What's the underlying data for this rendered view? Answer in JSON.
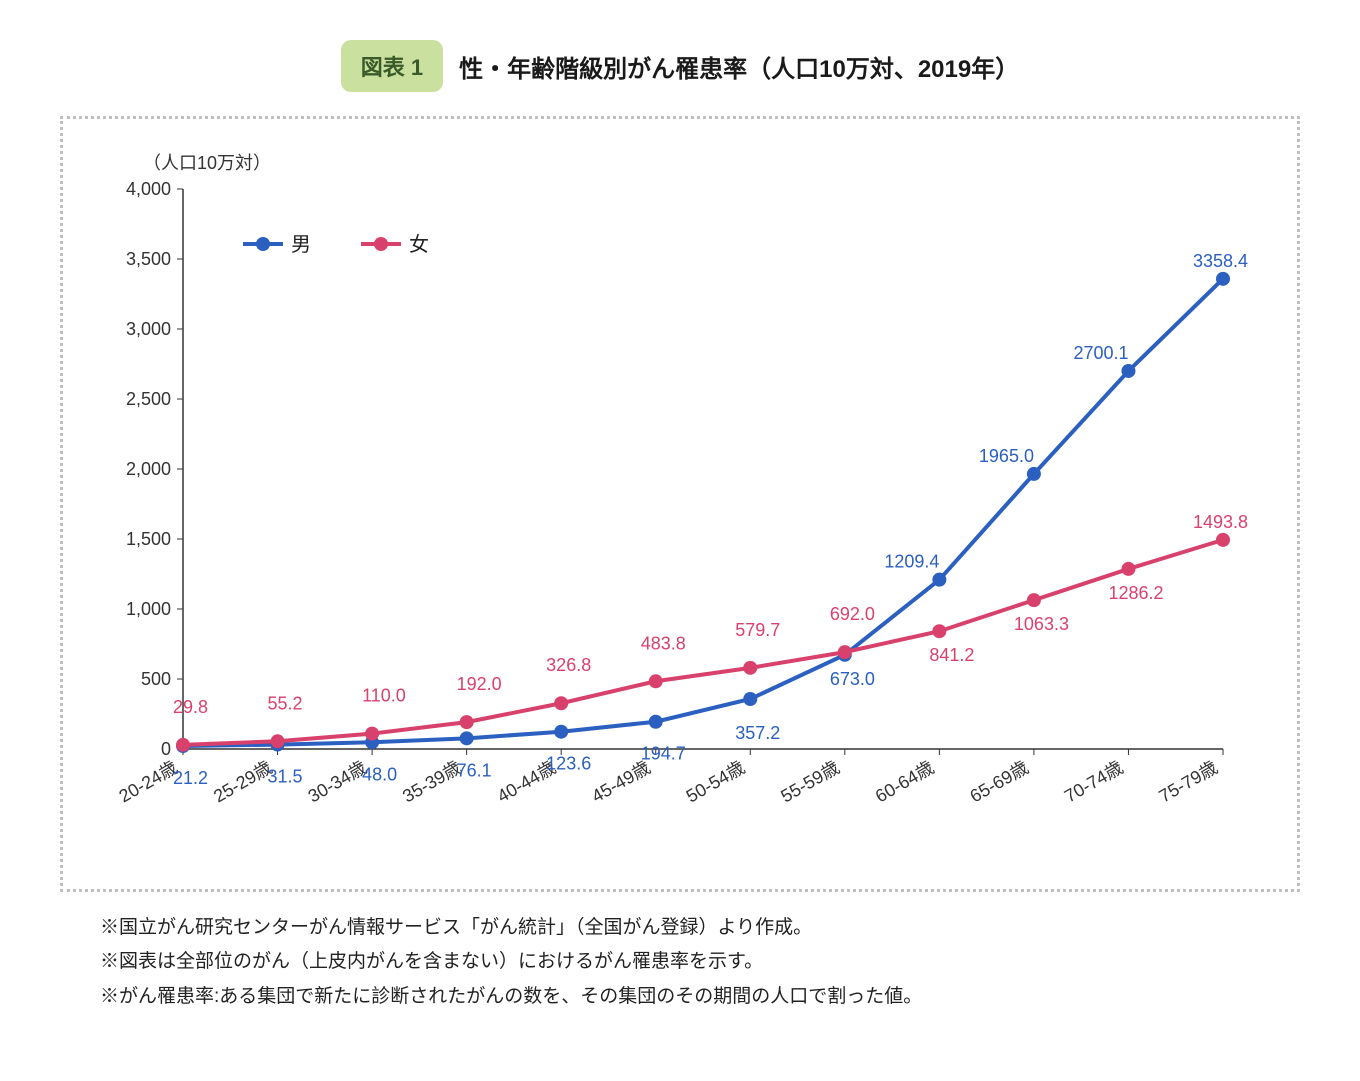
{
  "header": {
    "badge": "図表 1",
    "title": "性・年齢階級別がん罹患率（人口10万対、2019年）"
  },
  "chart": {
    "type": "line",
    "y_axis_label": "（人口10万対）",
    "categories": [
      "20-24歳",
      "25-29歳",
      "30-34歳",
      "35-39歳",
      "40-44歳",
      "45-49歳",
      "50-54歳",
      "55-59歳",
      "60-64歳",
      "65-69歳",
      "70-74歳",
      "75-79歳"
    ],
    "ylim": [
      0,
      4000
    ],
    "ytick_step": 500,
    "yticks": [
      "0",
      "500",
      "1,000",
      "1,500",
      "2,000",
      "2,500",
      "3,000",
      "3,500",
      "4,000"
    ],
    "series": [
      {
        "name": "男",
        "color": "#2b5fc0",
        "values": [
          21.2,
          31.5,
          48.0,
          76.1,
          123.6,
          194.7,
          357.2,
          673.0,
          1209.4,
          1965.0,
          2700.1,
          3358.4
        ],
        "label_offset": [
          [
            -10,
            38
          ],
          [
            -10,
            38
          ],
          [
            -10,
            38
          ],
          [
            -10,
            38
          ],
          [
            -15,
            38
          ],
          [
            -15,
            38
          ],
          [
            -15,
            40
          ],
          [
            -15,
            30
          ],
          [
            -55,
            -12
          ],
          [
            -55,
            -12
          ],
          [
            -55,
            -12
          ],
          [
            -30,
            -12
          ]
        ]
      },
      {
        "name": "女",
        "color": "#d9416d",
        "values": [
          29.8,
          55.2,
          110.0,
          192.0,
          326.8,
          483.8,
          579.7,
          692.0,
          841.2,
          1063.3,
          1286.2,
          1493.8
        ],
        "label_offset": [
          [
            -10,
            -32
          ],
          [
            -10,
            -32
          ],
          [
            -10,
            -32
          ],
          [
            -10,
            -32
          ],
          [
            -15,
            -32
          ],
          [
            -15,
            -32
          ],
          [
            -15,
            -32
          ],
          [
            -15,
            -32
          ],
          [
            -10,
            30
          ],
          [
            -20,
            30
          ],
          [
            -20,
            30
          ],
          [
            -30,
            -12
          ]
        ]
      }
    ],
    "legend": {
      "items": [
        "男",
        "女"
      ]
    },
    "style": {
      "axis_color": "#333333",
      "tick_font_size": 18,
      "label_font_size": 18,
      "legend_font_size": 20,
      "line_width": 4,
      "marker_radius": 7,
      "background_color": "#ffffff",
      "xlabel_rotation": -30
    }
  },
  "footnotes": [
    "※国立がん研究センターがん情報サービス「がん統計」（全国がん登録）より作成。",
    "※図表は全部位のがん（上皮内がんを含まない）におけるがん罹患率を示す。",
    "※がん罹患率:ある集団で新たに診断されたがんの数を、その集団のその期間の人口で割った値。"
  ]
}
